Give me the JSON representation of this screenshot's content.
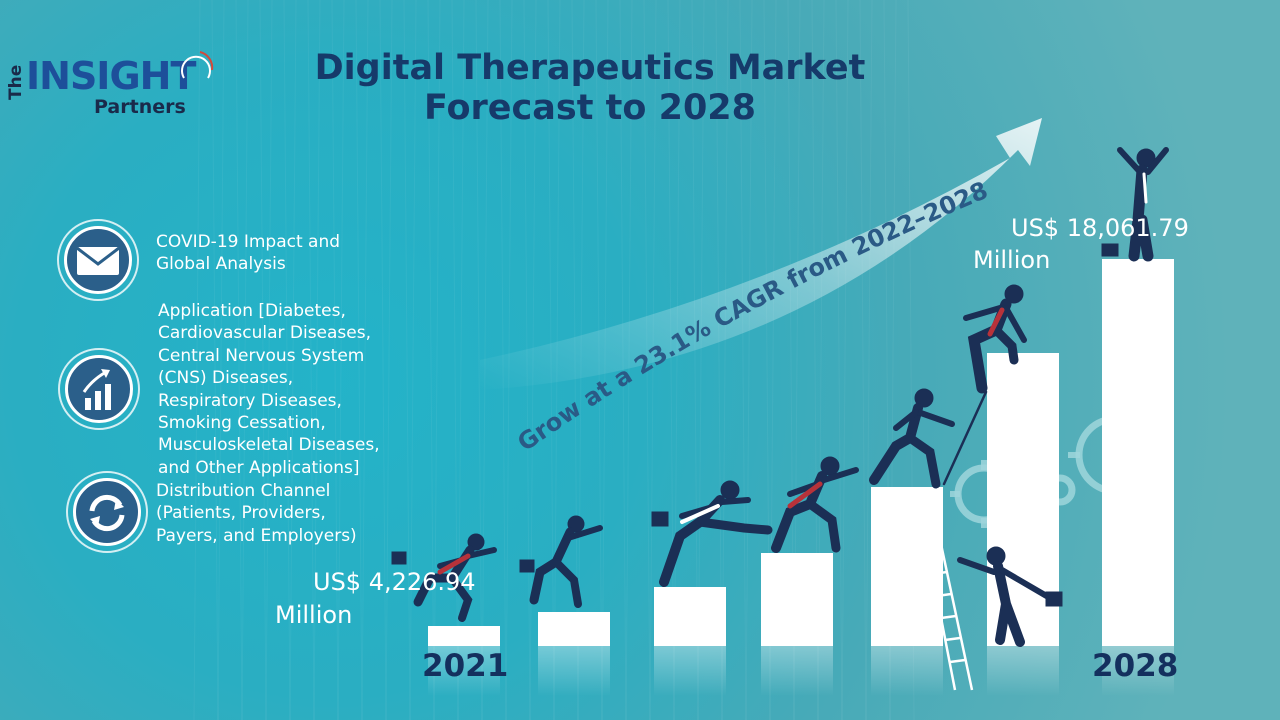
{
  "brand": {
    "logo_line1": "The",
    "logo_line2": "INSIGHT",
    "logo_line3": "Partners"
  },
  "title": {
    "line1": "Digital Therapeutics Market",
    "line2": "Forecast to 2028"
  },
  "features": [
    {
      "icon": "envelope-icon",
      "text": "COVID-19 Impact and Global Analysis"
    },
    {
      "icon": "growth-chart-icon",
      "text": "Application [Diabetes, Cardiovascular Diseases, Central Nervous System (CNS) Diseases, Respiratory Diseases, Smoking Cessation, Musculoskeletal Diseases, and Other Applications]"
    },
    {
      "icon": "exchange-cycle-icon",
      "text": "Distribution Channel (Patients, Providers, Payers, and Employers)"
    }
  ],
  "growth": {
    "cagr_text": "Grow at a 23.1% CAGR from 2022–2028"
  },
  "market": {
    "start_value": "US$ 4,226.94",
    "start_unit": "Million",
    "end_value": "US$ 18,061.79",
    "end_unit": "Million",
    "start_year": "2021",
    "end_year": "2028"
  },
  "colors": {
    "title": "#163a6a",
    "navy": "#1b2f55",
    "accent_red": "#b7323a",
    "bar": "#ffffff",
    "gear": "#9fd6dc"
  }
}
